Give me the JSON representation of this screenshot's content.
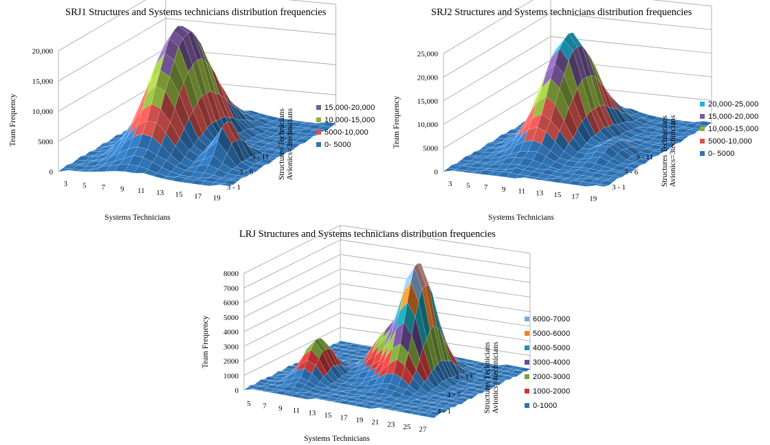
{
  "chart_data": [
    {
      "type": "surface",
      "title": "SRJ1 Structures and Systems technicians distribution frequencies",
      "xlabel": "Systems Technicians",
      "ylabel": "Team Frequency",
      "zlabel_line1": "Structures Technicians",
      "zlabel_line2": "Avionics=3technicians",
      "x_ticks": [
        "3",
        "5",
        "7",
        "9",
        "11",
        "13",
        "15",
        "17",
        "19"
      ],
      "depth_ticks": [
        "3 - 11",
        "3 - 6",
        "3 - 1"
      ],
      "ylim": [
        0,
        20000
      ],
      "y_ticks": [
        "0",
        "5000",
        "10,000",
        "15,000",
        "20,000"
      ],
      "legend": [
        "15,000-20,000",
        "10,000-15,000",
        "5000-10,000",
        "0- 5000"
      ],
      "legend_colors": [
        "#7a5a9e",
        "#8fb13f",
        "#d9534f",
        "#2e73b5"
      ],
      "peak": {
        "systems_technicians": 9,
        "team_frequency": 20000
      },
      "secondary_peak": {
        "systems_technicians": 16,
        "team_frequency": 8000
      }
    },
    {
      "type": "surface",
      "title": "SRJ2 Structures and Systems technicians distribution frequencies",
      "xlabel": "Systems Technicians",
      "ylabel": "Team Frequency",
      "zlabel_line1": "Structures Technicians",
      "zlabel_line2": "Avionics=3technicians",
      "x_ticks": [
        "3",
        "5",
        "7",
        "9",
        "11",
        "13",
        "15",
        "17",
        "19"
      ],
      "depth_ticks": [
        "3 - 11",
        "3 - 6",
        "3 - 1"
      ],
      "ylim": [
        0,
        25000
      ],
      "y_ticks": [
        "0",
        "5000",
        "10,000",
        "15,000",
        "20,000",
        "25,000"
      ],
      "legend": [
        "20,000-25,000",
        "15,000-20,000",
        "10,000-15,000",
        "5000-10,000",
        "0- 5000"
      ],
      "legend_colors": [
        "#1fb3d6",
        "#7a5a9e",
        "#8fb13f",
        "#d9534f",
        "#2e73b5"
      ],
      "peak": {
        "systems_technicians": 9,
        "team_frequency": 22500
      }
    },
    {
      "type": "surface",
      "title": "LRJ Structures and Systems technicians distribution frequencies",
      "xlabel": "Systems Technicians",
      "ylabel": "Team Frequency",
      "zlabel_line1": "Structures Technicians",
      "zlabel_line2": "Avionics=4technicians",
      "x_ticks": [
        "5",
        "7",
        "9",
        "11",
        "13",
        "15",
        "17",
        "19",
        "21",
        "23",
        "25",
        "27"
      ],
      "depth_ticks": [
        "4 - 13",
        "4 - 7",
        "4 - 1"
      ],
      "ylim": [
        0,
        8000
      ],
      "y_ticks": [
        "0",
        "1000",
        "2000",
        "3000",
        "4000",
        "5000",
        "6000",
        "7000",
        "8000"
      ],
      "legend": [
        "6000-7000",
        "5000-6000",
        "4000-5000",
        "3000-4000",
        "2000-3000",
        "1000-2000",
        "0-1000"
      ],
      "legend_colors": [
        "#7fa7d6",
        "#f07f2a",
        "#1b9aaa",
        "#6a4c93",
        "#7aa33a",
        "#c83b3b",
        "#2e73b5"
      ],
      "peak": {
        "systems_technicians": 21,
        "team_frequency": 7800
      }
    }
  ]
}
